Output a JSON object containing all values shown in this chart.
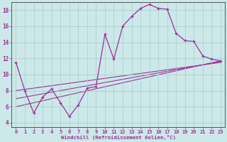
{
  "xlabel": "Windchill (Refroidissement éolien,°C)",
  "background_color": "#cce8e8",
  "line_color": "#993399",
  "grid_color": "#aacccc",
  "xlim": [
    -0.5,
    23.5
  ],
  "ylim": [
    3.5,
    19.0
  ],
  "xticks": [
    0,
    1,
    2,
    3,
    4,
    5,
    6,
    7,
    8,
    9,
    10,
    11,
    12,
    13,
    14,
    15,
    16,
    17,
    18,
    19,
    20,
    21,
    22,
    23
  ],
  "yticks": [
    4,
    6,
    8,
    10,
    12,
    14,
    16,
    18
  ],
  "series": [
    [
      0,
      11.5
    ],
    [
      1,
      8.0
    ],
    [
      2,
      5.2
    ],
    [
      3,
      7.2
    ],
    [
      4,
      8.2
    ],
    [
      5,
      6.5
    ],
    [
      6,
      4.8
    ],
    [
      7,
      6.2
    ],
    [
      8,
      8.3
    ],
    [
      9,
      8.5
    ],
    [
      10,
      15.0
    ],
    [
      11,
      11.9
    ],
    [
      12,
      16.0
    ],
    [
      13,
      17.2
    ],
    [
      14,
      18.2
    ],
    [
      15,
      18.7
    ],
    [
      16,
      18.2
    ],
    [
      17,
      18.1
    ],
    [
      18,
      15.1
    ],
    [
      19,
      14.2
    ],
    [
      20,
      14.1
    ],
    [
      21,
      12.3
    ],
    [
      22,
      11.9
    ],
    [
      23,
      11.7
    ]
  ],
  "trend_lines": [
    {
      "x": [
        0,
        23
      ],
      "y": [
        8.0,
        11.5
      ]
    },
    {
      "x": [
        0,
        23
      ],
      "y": [
        7.0,
        11.6
      ]
    },
    {
      "x": [
        0,
        23
      ],
      "y": [
        6.0,
        11.7
      ]
    }
  ],
  "figsize": [
    3.2,
    2.0
  ],
  "dpi": 100
}
